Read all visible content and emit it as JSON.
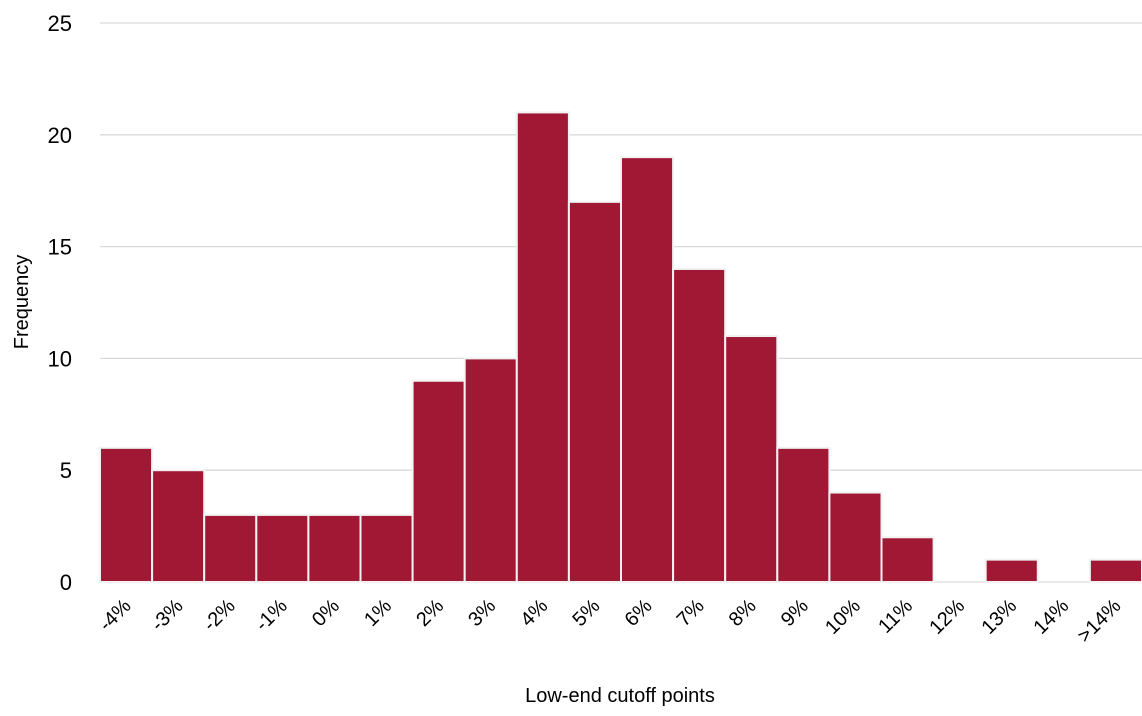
{
  "chart_data": {
    "type": "bar",
    "title": "",
    "xlabel": "Low-end cutoff points",
    "ylabel": "Frequency",
    "categories": [
      "-4%",
      "-3%",
      "-2%",
      "-1%",
      "0%",
      "1%",
      "2%",
      "3%",
      "4%",
      "5%",
      "6%",
      "7%",
      "8%",
      "9%",
      "10%",
      "11%",
      "12%",
      "13%",
      "14%",
      ">14%"
    ],
    "values": [
      6,
      5,
      3,
      3,
      3,
      3,
      9,
      10,
      21,
      17,
      19,
      14,
      11,
      6,
      4,
      2,
      0,
      1,
      0,
      1
    ],
    "ylim": [
      0,
      25
    ],
    "yticks": [
      "0",
      "5",
      "10",
      "15",
      "20",
      "25"
    ],
    "grid": true,
    "legend": "none",
    "colors": {
      "bar": "#a01834",
      "bar_edge": "#f2f2f2",
      "grid": "#d9d9d9"
    }
  }
}
